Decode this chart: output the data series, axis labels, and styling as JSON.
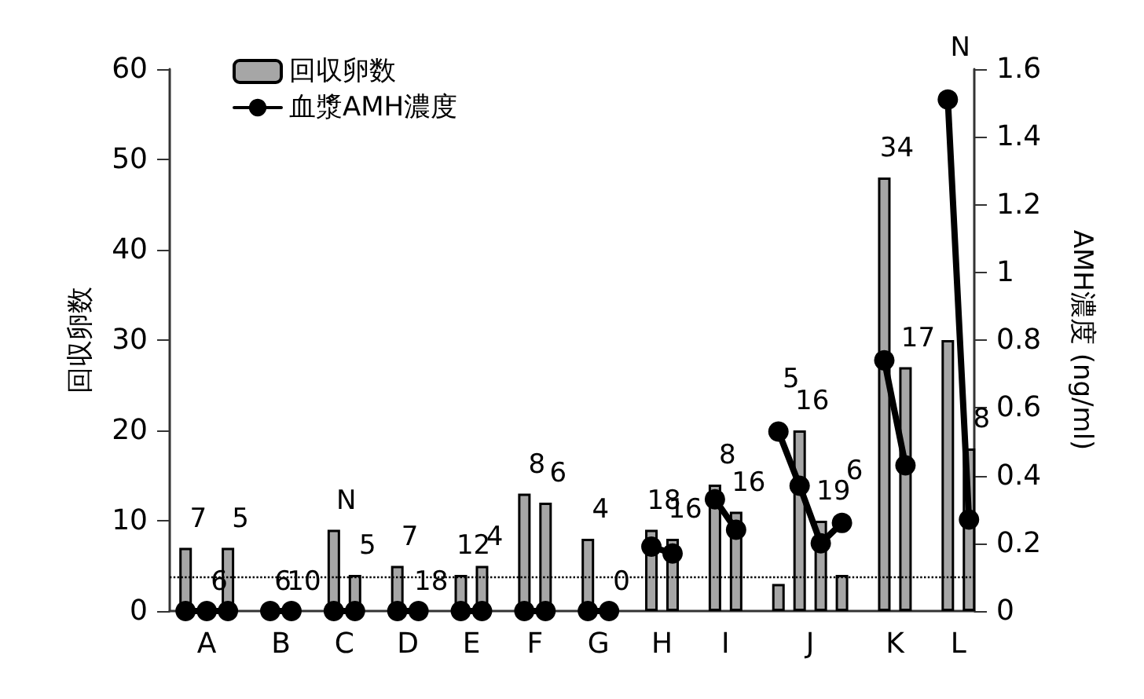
{
  "chart_data": {
    "type": "bar",
    "ylabel": "回収卵数",
    "y2label": "AMH濃度 (ng/ml)",
    "categories": [
      null,
      null,
      null,
      "A",
      null,
      null,
      null,
      null,
      null,
      null,
      "B",
      null,
      null,
      null,
      null,
      null,
      "C",
      null,
      null,
      null,
      null,
      null,
      "D",
      null,
      null,
      null,
      null,
      null,
      "E",
      null,
      null,
      null,
      null,
      null,
      "F",
      null,
      null,
      null,
      null,
      null,
      "G",
      null,
      null,
      null,
      null,
      null,
      "H",
      null,
      null,
      null,
      null,
      null,
      "I",
      null,
      null,
      null,
      null,
      null,
      null,
      null,
      "J",
      null,
      null,
      null,
      null,
      null,
      null,
      null,
      "K",
      null,
      null,
      null,
      null,
      null,
      "L",
      null
    ],
    "series": [
      {
        "name": "回収卵数",
        "color": "#a6a6a6",
        "values": [
          null,
          7,
          null,
          0,
          null,
          7,
          null,
          null,
          null,
          0,
          null,
          0,
          null,
          null,
          null,
          9,
          null,
          4,
          null,
          null,
          null,
          5,
          null,
          0,
          null,
          null,
          null,
          4,
          null,
          5,
          null,
          null,
          null,
          13,
          null,
          12,
          null,
          null,
          null,
          8,
          null,
          0,
          null,
          null,
          null,
          9,
          null,
          8,
          null,
          null,
          null,
          14,
          null,
          11,
          null,
          null,
          null,
          3,
          null,
          20,
          null,
          10,
          null,
          4,
          null,
          null,
          null,
          48,
          null,
          27,
          null,
          null,
          null,
          30,
          null,
          18
        ]
      },
      {
        "name": "血漿AMH濃度",
        "type": "line",
        "axis": "y2",
        "color": "#000000",
        "values": [
          null,
          0,
          null,
          0,
          null,
          0,
          null,
          null,
          null,
          0,
          null,
          0,
          null,
          null,
          null,
          0,
          null,
          0,
          null,
          null,
          null,
          0,
          null,
          0,
          null,
          null,
          null,
          0,
          null,
          0,
          null,
          null,
          null,
          0,
          null,
          0,
          null,
          null,
          null,
          0,
          null,
          0,
          null,
          null,
          null,
          0.19,
          null,
          0.17,
          null,
          null,
          null,
          0.33,
          null,
          0.24,
          null,
          null,
          null,
          0.53,
          null,
          0.37,
          null,
          0.2,
          null,
          0.26,
          null,
          null,
          null,
          0.74,
          null,
          0.43,
          null,
          null,
          null,
          1.51,
          null,
          0.27
        ]
      }
    ],
    "annotations": [
      "7",
      "6",
      "5",
      "6",
      "10",
      "N",
      "5",
      "7",
      "18",
      "12",
      "4",
      "8",
      "6",
      "4",
      "0",
      "18",
      "16",
      "8",
      "16",
      "5",
      "16",
      "19",
      "6",
      "34",
      "17",
      "N",
      "8"
    ],
    "ylim": [
      0,
      60
    ],
    "yticks": [
      0,
      10,
      20,
      30,
      40,
      50,
      60
    ],
    "y2lim": [
      0,
      1.6
    ],
    "y2ticks": [
      0,
      0.2,
      0.4,
      0.6,
      0.8,
      1,
      1.2,
      1.4,
      1.6
    ],
    "ref_lines": [
      {
        "axis": "y2",
        "value": 0.1,
        "color": "#000000",
        "line_style": "dotted"
      }
    ],
    "marker": "circle",
    "grid": false,
    "legend": "top left"
  }
}
